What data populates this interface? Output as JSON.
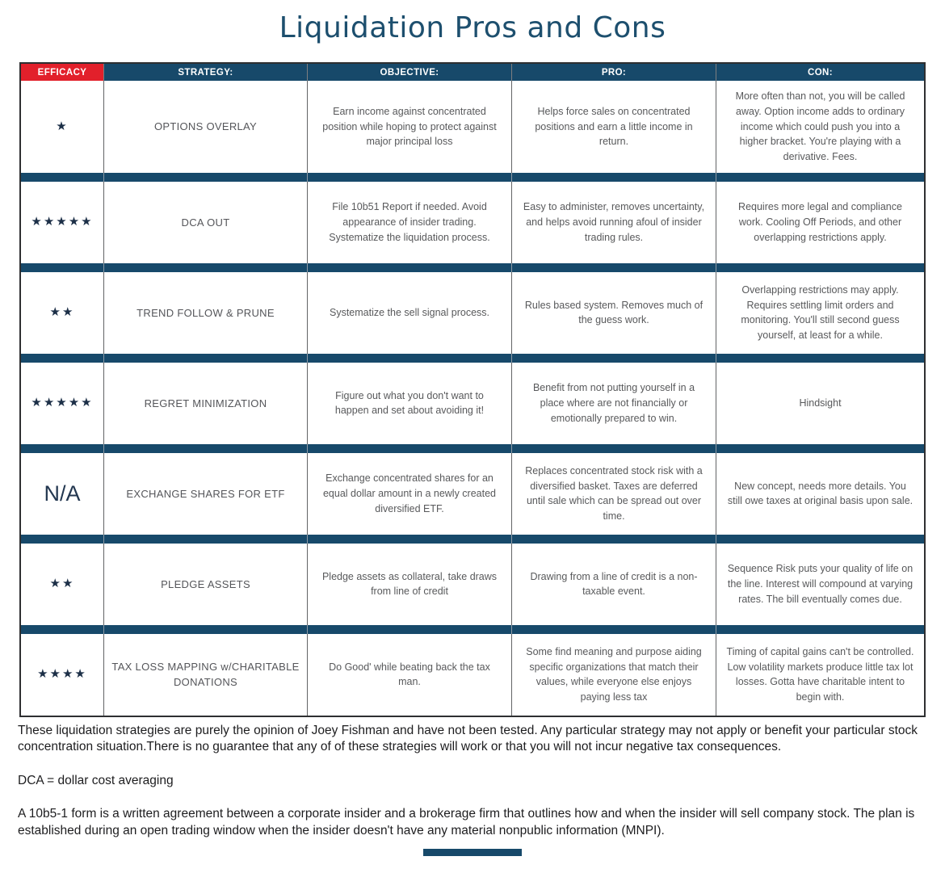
{
  "title": "Liquidation Pros and Cons",
  "table": {
    "headers": [
      "EFFICACY",
      "STRATEGY:",
      "OBJECTIVE:",
      "PRO:",
      "CON:"
    ],
    "rows": [
      {
        "efficacy": "★",
        "strategy": "OPTIONS OVERLAY",
        "objective": "Earn income against concentrated position while hoping to protect against major principal loss",
        "pro": "Helps force sales on concentrated positions and earn a little income in return.",
        "con": "More often than not, you will be called away. Option income adds to ordinary income which could push you into a higher bracket. You're playing with a derivative. Fees."
      },
      {
        "efficacy": "★★★★★",
        "strategy": "DCA OUT",
        "objective": "File 10b51 Report if needed. Avoid appearance of insider trading. Systematize the liquidation process.",
        "pro": "Easy to administer, removes uncertainty, and helps avoid running afoul of insider trading rules.",
        "con": "Requires more legal and compliance work. Cooling Off Periods, and other overlapping restrictions apply."
      },
      {
        "efficacy": "★★",
        "strategy": "TREND FOLLOW & PRUNE",
        "objective": "Systematize the sell signal process.",
        "pro": "Rules based system. Removes much of the guess work.",
        "con": "Overlapping restrictions may apply. Requires settling limit orders and monitoring. You'll still second guess yourself, at least for a while."
      },
      {
        "efficacy": "★★★★★",
        "strategy": "REGRET MINIMIZATION",
        "objective": "Figure out what you don't want to happen and set about avoiding it!",
        "pro": "Benefit from not putting yourself in a place where are not financially or emotionally prepared to win.",
        "con": "Hindsight"
      },
      {
        "efficacy": "N/A",
        "strategy": "EXCHANGE SHARES FOR ETF",
        "objective": "Exchange concentrated shares for an equal dollar amount in a newly created diversified ETF.",
        "pro": "Replaces concentrated stock risk with a diversified basket. Taxes are deferred until sale which can be spread out over time.",
        "con": "New concept, needs more details. You still owe taxes at original basis upon sale."
      },
      {
        "efficacy": "★★",
        "strategy": "PLEDGE ASSETS",
        "objective": "Pledge assets as collateral, take draws from line of credit",
        "pro": "Drawing from a line of credit is a non-taxable event.",
        "con": "Sequence Risk puts your quality of life on the line. Interest will compound at varying rates. The bill eventually comes due."
      },
      {
        "efficacy": "★★★★",
        "strategy": "TAX LOSS MAPPING w/CHARITABLE DONATIONS",
        "objective": "Do Good' while beating back the tax man.",
        "pro": "Some find meaning and purpose aiding specific organizations that match their values, while everyone else enjoys paying less tax",
        "con": "Timing of capital gains can't be controlled. Low volatility markets produce little tax lot losses. Gotta have charitable intent to begin with."
      }
    ]
  },
  "footnotes": [
    "These liquidation strategies are purely the opinion of Joey Fishman and have not been tested. Any particular strategy may not apply or benefit your particular stock concentration situation.There is no guarantee that any of of these strategies will work or that you will not incur negative tax consequences.",
    "DCA = dollar cost averaging",
    "A 10b5-1 form is a written agreement between a corporate insider and a brokerage firm that outlines how and when the insider will sell company stock. The plan is established during an open trading window when the insider doesn't have any material nonpublic information (MNPI)."
  ],
  "colors": {
    "header_blue": "#17496A",
    "efficacy_red": "#E2202B",
    "title_blue": "#1D4F6E",
    "cell_text": "#58595B",
    "star_navy": "#1C2F47"
  }
}
